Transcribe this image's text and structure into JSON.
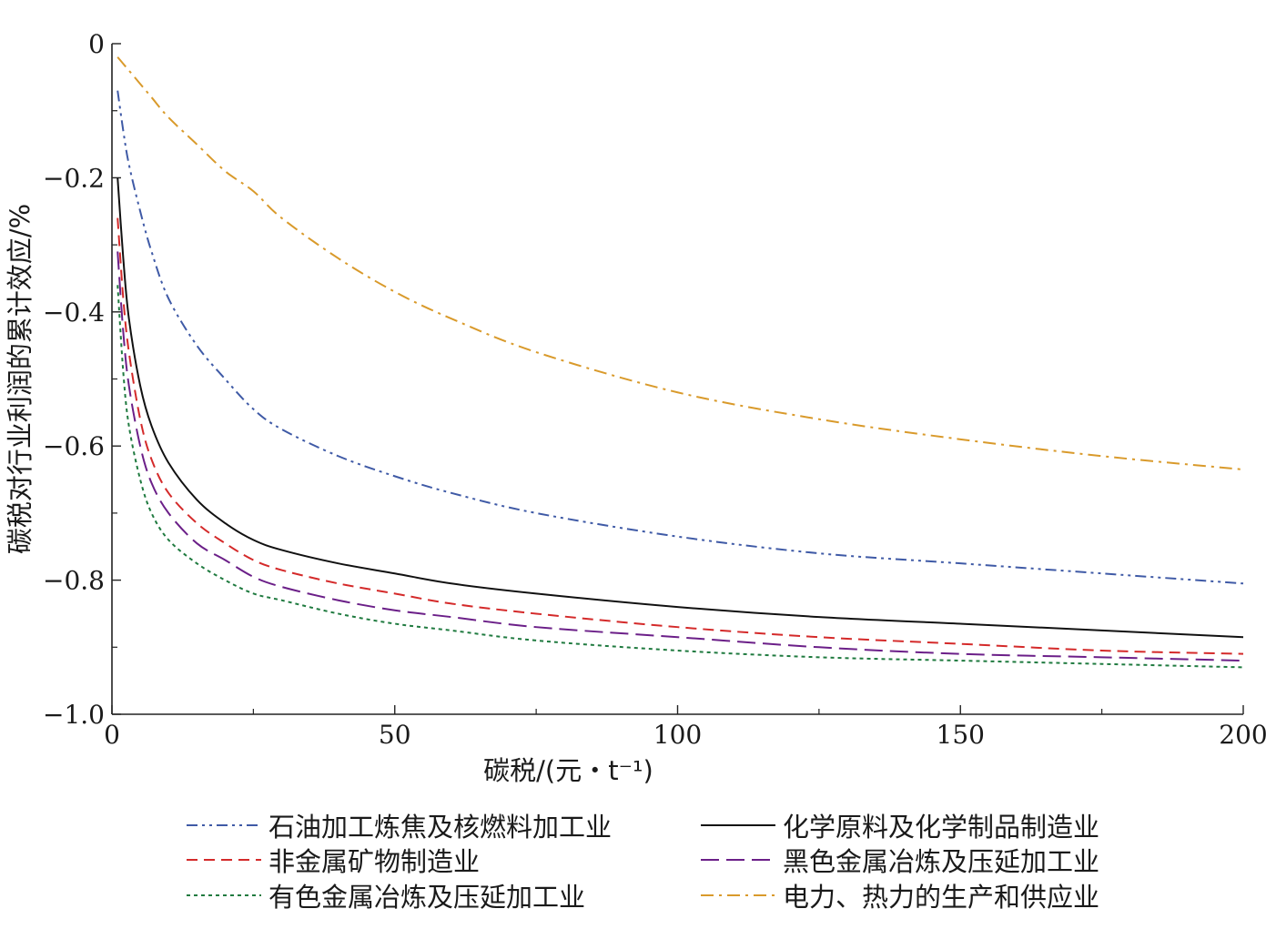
{
  "chart_data": {
    "type": "line",
    "xlabel": "碳税/(元・t⁻¹)",
    "ylabel": "碳税对行业利润的累计效应/%",
    "xlim": [
      0,
      200
    ],
    "ylim": [
      -1.0,
      0
    ],
    "xticks": [
      "0",
      "50",
      "100",
      "150",
      "200"
    ],
    "yticks": [
      "0",
      "−0.2",
      "−0.4",
      "−0.6",
      "−0.8",
      "−1.0"
    ],
    "xtick_values": [
      0,
      50,
      100,
      150,
      200
    ],
    "ytick_values": [
      0,
      -0.2,
      -0.4,
      -0.6,
      -0.8,
      -1.0
    ],
    "grid": false,
    "legend_position": "bottom",
    "x": [
      1,
      2,
      3,
      5,
      7,
      10,
      15,
      20,
      25,
      30,
      40,
      50,
      60,
      75,
      100,
      125,
      150,
      175,
      200
    ],
    "series": [
      {
        "name": "石油加工炼焦及核燃料加工业",
        "color": "#3f5aa6",
        "dash": "dashdotdot",
        "values": [
          -0.07,
          -0.13,
          -0.18,
          -0.25,
          -0.31,
          -0.38,
          -0.45,
          -0.5,
          -0.545,
          -0.575,
          -0.615,
          -0.645,
          -0.67,
          -0.7,
          -0.735,
          -0.76,
          -0.775,
          -0.79,
          -0.805
        ]
      },
      {
        "name": "化学原料及化学制品制造业",
        "color": "#111111",
        "dash": "solid",
        "values": [
          -0.2,
          -0.32,
          -0.41,
          -0.51,
          -0.57,
          -0.625,
          -0.68,
          -0.715,
          -0.74,
          -0.755,
          -0.775,
          -0.79,
          -0.805,
          -0.82,
          -0.84,
          -0.855,
          -0.865,
          -0.875,
          -0.885
        ]
      },
      {
        "name": "非金属矿物制造业",
        "color": "#d42a2a",
        "dash": "dash",
        "values": [
          -0.26,
          -0.38,
          -0.46,
          -0.56,
          -0.62,
          -0.67,
          -0.715,
          -0.745,
          -0.77,
          -0.785,
          -0.805,
          -0.82,
          -0.835,
          -0.85,
          -0.87,
          -0.885,
          -0.895,
          -0.905,
          -0.91
        ]
      },
      {
        "name": "黑色金属冶炼及压延加工业",
        "color": "#6b1f88",
        "dash": "longdash",
        "values": [
          -0.31,
          -0.43,
          -0.51,
          -0.6,
          -0.655,
          -0.7,
          -0.745,
          -0.77,
          -0.795,
          -0.81,
          -0.83,
          -0.845,
          -0.855,
          -0.87,
          -0.885,
          -0.9,
          -0.91,
          -0.915,
          -0.92
        ]
      },
      {
        "name": "有色金属冶炼及压延加工业",
        "color": "#1f7a3f",
        "dash": "dot",
        "values": [
          -0.36,
          -0.49,
          -0.57,
          -0.65,
          -0.7,
          -0.74,
          -0.775,
          -0.8,
          -0.82,
          -0.83,
          -0.85,
          -0.865,
          -0.875,
          -0.89,
          -0.905,
          -0.915,
          -0.92,
          -0.925,
          -0.93
        ]
      },
      {
        "name": "电力、热力的生产和供应业",
        "color": "#d99a2b",
        "dash": "dashdot",
        "values": [
          -0.02,
          -0.03,
          -0.04,
          -0.06,
          -0.08,
          -0.11,
          -0.15,
          -0.19,
          -0.22,
          -0.26,
          -0.32,
          -0.37,
          -0.41,
          -0.46,
          -0.52,
          -0.56,
          -0.59,
          -0.615,
          -0.635
        ]
      }
    ]
  }
}
